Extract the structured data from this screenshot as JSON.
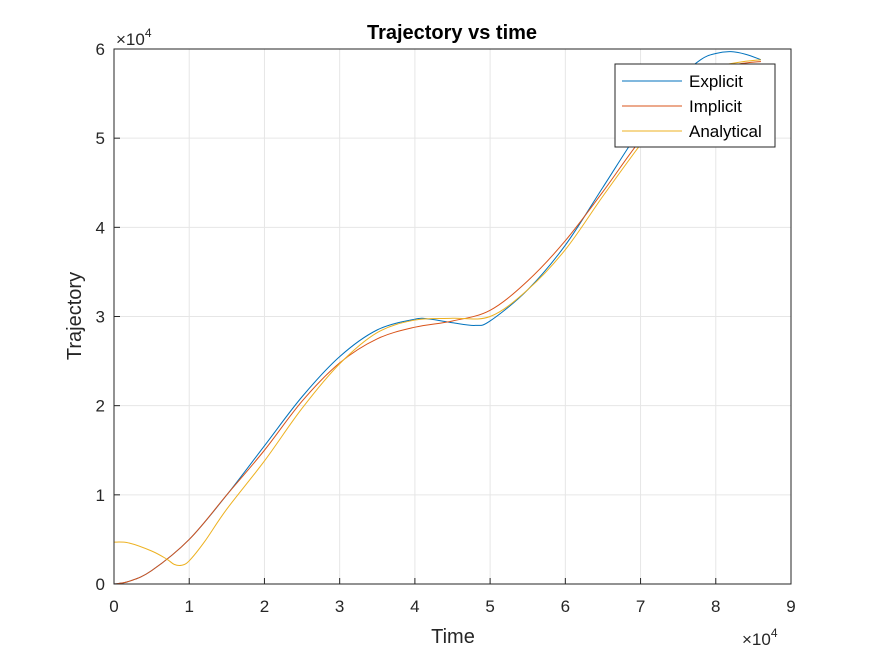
{
  "chart_data": {
    "type": "line",
    "title": "Trajectory vs time",
    "xlabel": "Time",
    "ylabel": "Trajectory",
    "x_exponent_label": {
      "base": "×10",
      "exp": "4"
    },
    "y_exponent_label": {
      "base": "×10",
      "exp": "4"
    },
    "xlim": [
      0,
      90000
    ],
    "ylim": [
      0,
      60000
    ],
    "x_ticks": [
      0,
      10000,
      20000,
      30000,
      40000,
      50000,
      60000,
      70000,
      80000,
      90000
    ],
    "x_tick_labels": [
      "0",
      "1",
      "2",
      "3",
      "4",
      "5",
      "6",
      "7",
      "8",
      "9"
    ],
    "y_ticks": [
      0,
      10000,
      20000,
      30000,
      40000,
      50000,
      60000
    ],
    "y_tick_labels": [
      "0",
      "1",
      "2",
      "3",
      "4",
      "5",
      "6"
    ],
    "grid": true,
    "legend_position": "top-right",
    "series": [
      {
        "name": "Explicit",
        "color": "#0072BD",
        "x": [
          0,
          2000,
          5000,
          10000,
          15000,
          20000,
          25000,
          30000,
          35000,
          40000,
          42000,
          45000,
          48000,
          50000,
          55000,
          60000,
          65000,
          70000,
          75000,
          78000,
          80000,
          82000,
          84000,
          86000
        ],
        "y": [
          0,
          300,
          1500,
          5000,
          10000,
          15500,
          21000,
          25500,
          28500,
          29700,
          29700,
          29300,
          29000,
          29500,
          33000,
          38000,
          44500,
          51000,
          56500,
          58800,
          59500,
          59700,
          59400,
          58800
        ]
      },
      {
        "name": "Implicit",
        "color": "#D95319",
        "x": [
          0,
          2000,
          5000,
          10000,
          15000,
          20000,
          25000,
          30000,
          35000,
          40000,
          45000,
          50000,
          55000,
          60000,
          65000,
          70000,
          75000,
          80000,
          83000,
          86000
        ],
        "y": [
          0,
          300,
          1500,
          5000,
          10000,
          15000,
          20500,
          24800,
          27500,
          28800,
          29500,
          30700,
          34000,
          38500,
          44000,
          49800,
          54500,
          57500,
          58300,
          58600
        ]
      },
      {
        "name": "Analytical",
        "color": "#EDB120",
        "x": [
          0,
          2000,
          5000,
          7000,
          8000,
          9000,
          10000,
          12000,
          15000,
          20000,
          25000,
          30000,
          35000,
          40000,
          45000,
          50000,
          55000,
          60000,
          65000,
          70000,
          75000,
          80000,
          83000,
          86000
        ],
        "y": [
          4700,
          4600,
          3700,
          2800,
          2200,
          2100,
          2600,
          4700,
          8400,
          13800,
          19700,
          24700,
          28200,
          29600,
          29800,
          30000,
          33000,
          37500,
          43500,
          49300,
          54800,
          57800,
          58500,
          58800
        ]
      }
    ]
  }
}
